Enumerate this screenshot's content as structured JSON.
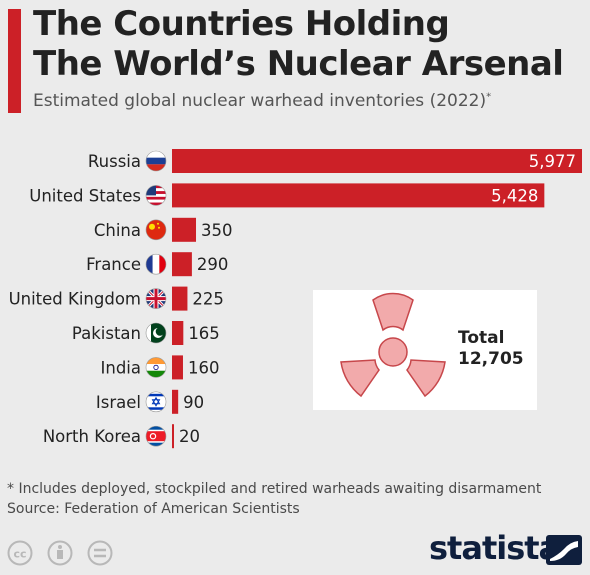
{
  "header": {
    "title_line1": "The Countries Holding",
    "title_line2": "The World’s Nuclear Arsenal",
    "subtitle": "Estimated global nuclear warhead inventories (2022)",
    "subtitle_mark": "*"
  },
  "colors": {
    "accent": "#cc2027",
    "background": "#ebebeb",
    "brand": "#0f1f3d"
  },
  "chart_data": {
    "type": "bar",
    "orientation": "horizontal",
    "categories": [
      "Russia",
      "United States",
      "China",
      "France",
      "United Kingdom",
      "Pakistan",
      "India",
      "Israel",
      "North Korea"
    ],
    "values": [
      5977,
      5428,
      350,
      290,
      225,
      165,
      160,
      90,
      20
    ],
    "value_labels": [
      "5,977",
      "5,428",
      "350",
      "290",
      "225",
      "165",
      "160",
      "90",
      "20"
    ],
    "flags": [
      "russia-flag-icon",
      "us-flag-icon",
      "china-flag-icon",
      "france-flag-icon",
      "uk-flag-icon",
      "pakistan-flag-icon",
      "india-flag-icon",
      "israel-flag-icon",
      "north-korea-flag-icon"
    ],
    "xlim": [
      0,
      5977
    ],
    "grid": false,
    "legend": "none"
  },
  "total": {
    "label": "Total",
    "value": "12,705"
  },
  "footnote": {
    "note": "* Includes deployed, stockpiled and retired warheads awaiting disarmament",
    "source": "Source: Federation of American Scientists"
  },
  "license_icons": [
    "cc-icon",
    "attribution-icon",
    "no-derivatives-icon"
  ],
  "brand": {
    "name": "statista"
  }
}
